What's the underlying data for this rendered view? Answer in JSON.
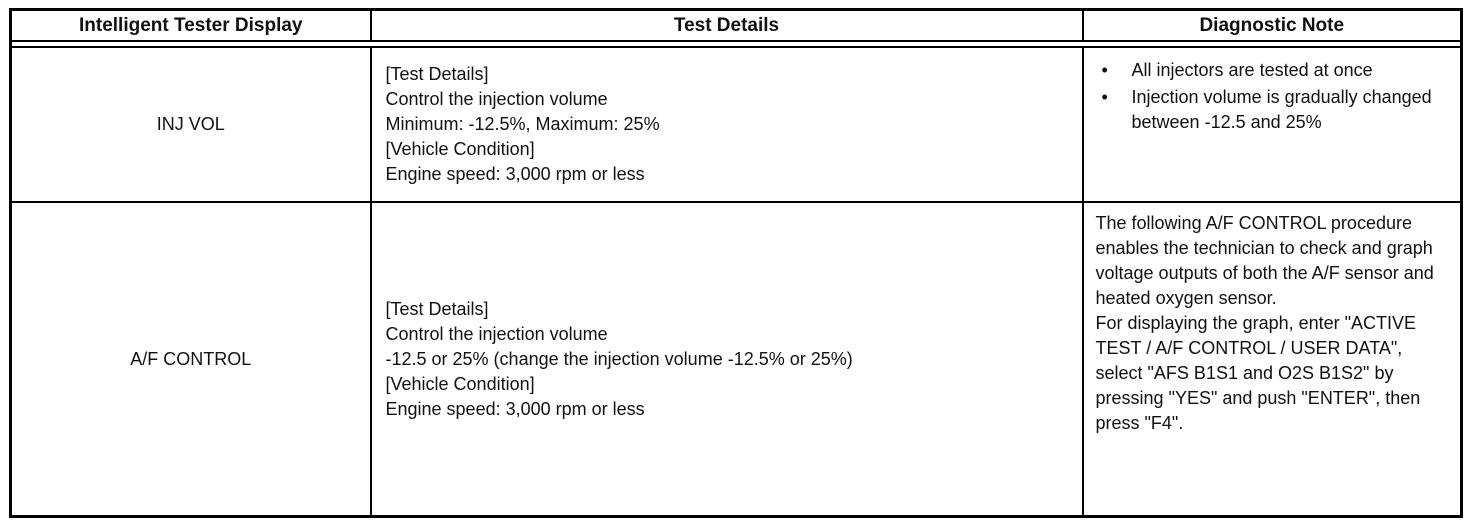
{
  "table": {
    "headers": [
      "Intelligent Tester Display",
      "Test Details",
      "Diagnostic Note"
    ],
    "rows": [
      {
        "display": "INJ VOL",
        "details": [
          "[Test Details]",
          "Control the injection volume",
          "Minimum: -12.5%, Maximum: 25%",
          "[Vehicle Condition]",
          "Engine speed: 3,000 rpm or less"
        ],
        "note_bullets": [
          "All injectors are tested at once",
          "Injection volume is gradually changed between -12.5 and 25%"
        ]
      },
      {
        "display": "A/F CONTROL",
        "details": [
          "[Test Details]",
          "Control the injection volume",
          "-12.5 or 25% (change the injection volume -12.5% or 25%)",
          "[Vehicle Condition]",
          "Engine speed: 3,000 rpm or less"
        ],
        "note_text": "The following A/F CONTROL procedure enables the technician to check and graph voltage outputs of both the A/F sensor and heated oxygen sensor.\nFor displaying the graph, enter \"ACTIVE TEST / A/F CONTROL / USER DATA\", select \"AFS B1S1 and O2S B1S2\" by pressing \"YES\" and push \"ENTER\", then press \"F4\"."
      }
    ]
  },
  "colors": {
    "border": "#000000",
    "background": "#ffffff",
    "text": "#111111"
  }
}
